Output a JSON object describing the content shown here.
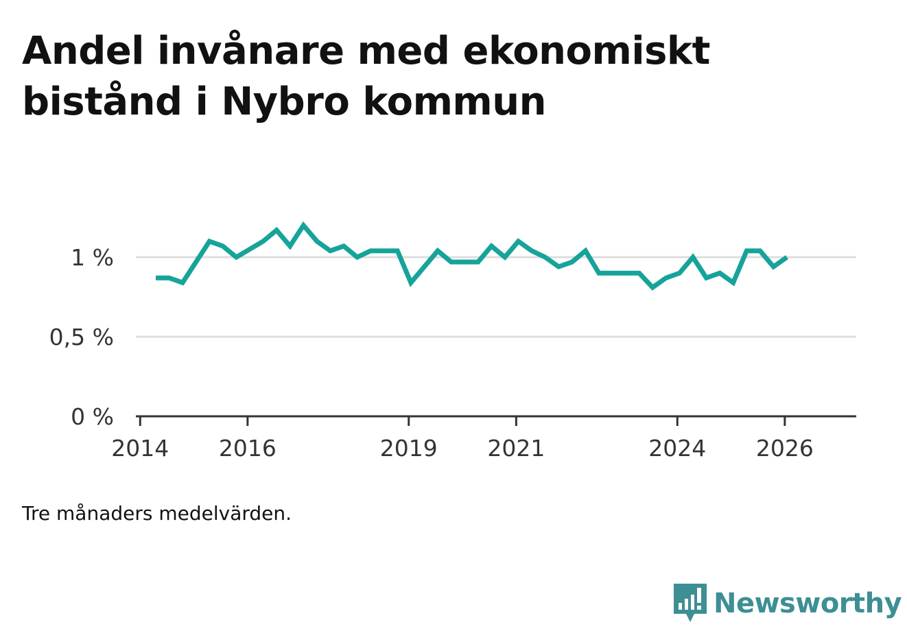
{
  "title": "Andel invånare med ekonomiskt bistånd i Nybro kommun",
  "note": "Tre månaders medelvärden.",
  "logo": {
    "text": "Newsworthy",
    "icon": "newsworthy-logo-icon"
  },
  "colors": {
    "line": "#16a39a",
    "grid": "#dddddd",
    "axis": "#333333",
    "brand": "#3d8f94"
  },
  "chart_data": {
    "type": "line",
    "title": "Andel invånare med ekonomiskt bistånd i Nybro kommun",
    "xlabel": "",
    "ylabel": "",
    "ylim": [
      0,
      1.3
    ],
    "xlim": [
      2013.92,
      2027.33
    ],
    "yticks": [
      {
        "value": 0,
        "label": "0 %"
      },
      {
        "value": 0.5,
        "label": "0,5 %"
      },
      {
        "value": 1,
        "label": "1 %"
      }
    ],
    "xticks": [
      {
        "value": 2014,
        "label": "2014"
      },
      {
        "value": 2016,
        "label": "2016"
      },
      {
        "value": 2019,
        "label": "2019"
      },
      {
        "value": 2021,
        "label": "2021"
      },
      {
        "value": 2024,
        "label": "2024"
      },
      {
        "value": 2026,
        "label": "2026"
      }
    ],
    "grid": true,
    "series": [
      {
        "name": "Andel invånare med ekonomiskt bistånd",
        "x": [
          2014.29,
          2014.54,
          2014.79,
          2015.04,
          2015.29,
          2015.54,
          2015.79,
          2016.04,
          2016.29,
          2016.54,
          2016.79,
          2017.04,
          2017.29,
          2017.54,
          2017.79,
          2018.04,
          2018.29,
          2018.54,
          2018.79,
          2019.04,
          2019.29,
          2019.54,
          2019.79,
          2020.04,
          2020.29,
          2020.54,
          2020.79,
          2021.04,
          2021.29,
          2021.54,
          2021.79,
          2022.04,
          2022.29,
          2022.54,
          2022.79,
          2023.04,
          2023.29,
          2023.54,
          2023.79,
          2024.04,
          2024.29,
          2024.54,
          2024.79,
          2025.04,
          2025.29,
          2025.54,
          2025.79,
          2026.04
        ],
        "values": [
          0.87,
          0.87,
          0.84,
          0.97,
          1.1,
          1.07,
          1.0,
          1.05,
          1.1,
          1.17,
          1.07,
          1.2,
          1.1,
          1.04,
          1.07,
          1.0,
          1.04,
          1.04,
          1.04,
          0.84,
          0.94,
          1.04,
          0.97,
          0.97,
          0.97,
          1.07,
          1.0,
          1.1,
          1.04,
          1.0,
          0.94,
          0.97,
          1.04,
          0.9,
          0.9,
          0.9,
          0.9,
          0.81,
          0.87,
          0.9,
          1.0,
          0.87,
          0.9,
          0.84,
          1.04,
          1.04,
          0.94,
          1.0
        ]
      }
    ]
  }
}
